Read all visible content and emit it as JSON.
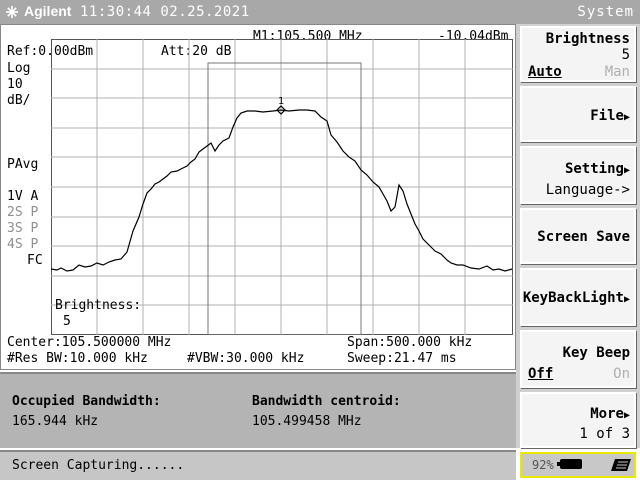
{
  "topbar": {
    "brand": "Agilent",
    "datetime": "11:30:44 02.25.2021",
    "menu_title": "System"
  },
  "screen": {
    "marker_readout": "M1:105.500 MHz",
    "marker_level": "-10.04dBm",
    "ref_level": "Ref:0.00dBm",
    "attenuation": "Att:20 dB",
    "scale_type": "Log",
    "scale_value": "10",
    "scale_unit": "dB/",
    "avg_mode": "PAvg",
    "trace_labels": [
      {
        "label": "1V A",
        "color": "#000000"
      },
      {
        "label": "2S P",
        "color": "#909090"
      },
      {
        "label": "3S P",
        "color": "#909090"
      },
      {
        "label": "4S P",
        "color": "#909090"
      }
    ],
    "fc_label": "FC",
    "marker_number": "1",
    "brightness_label": "Brightness:",
    "brightness_value": "5",
    "center": "Center:105.500000 MHz",
    "span": "Span:500.000 kHz",
    "res_bw": "#Res BW:10.000 kHz",
    "vbw": "#VBW:30.000 kHz",
    "sweep": "Sweep:21.47 ms"
  },
  "results": {
    "obw_label": "Occupied Bandwidth:",
    "obw_value": "165.944 kHz",
    "centroid_label": "Bandwidth centroid:",
    "centroid_value": "105.499458 MHz"
  },
  "status": {
    "message": "Screen Capturing......"
  },
  "menu": {
    "brightness": {
      "label": "Brightness",
      "value": "5",
      "auto": "Auto",
      "man": "Man"
    },
    "file": "File",
    "setting": "Setting",
    "language": "Language->",
    "screen_save": "Screen Save",
    "keybacklight": "KeyBackLight",
    "key_beep": "Key Beep",
    "key_beep_off": "Off",
    "key_beep_on": "On",
    "more": "More",
    "page": "1 of 3"
  },
  "battery": {
    "percent": "92%",
    "level": 0.92
  },
  "colors": {
    "topbar": "#a8a8a8",
    "trace": "#000000",
    "grid": "#b0b0b0",
    "highlight": "#e8e800"
  }
}
